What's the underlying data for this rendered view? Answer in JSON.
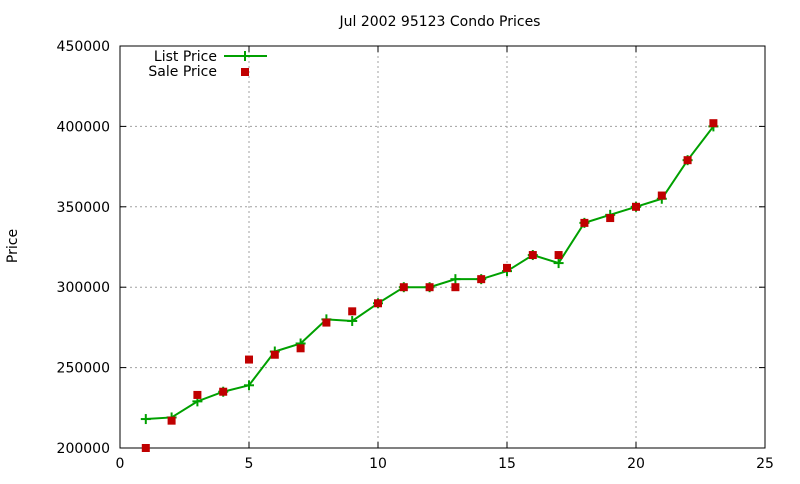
{
  "chart_data": {
    "type": "line",
    "title": "Jul 2002 95123 Condo Prices",
    "xlabel": "",
    "ylabel": "Price",
    "xlim": [
      0,
      25
    ],
    "ylim": [
      200000,
      450000
    ],
    "x_ticks": [
      0,
      5,
      10,
      15,
      20,
      25
    ],
    "y_ticks": [
      200000,
      250000,
      300000,
      350000,
      400000,
      450000
    ],
    "grid": true,
    "legend_position": "top-left",
    "series": [
      {
        "name": "List Price",
        "style": "line-with-plus-markers",
        "color": "#00a000",
        "x": [
          1,
          2,
          3,
          4,
          5,
          6,
          7,
          8,
          9,
          10,
          11,
          12,
          13,
          14,
          15,
          16,
          17,
          18,
          19,
          20,
          21,
          22,
          23
        ],
        "values": [
          218000,
          219000,
          229000,
          235000,
          239000,
          260000,
          265000,
          280000,
          279000,
          290000,
          300000,
          300000,
          305000,
          305000,
          310000,
          320000,
          315000,
          340000,
          345000,
          350000,
          355000,
          379000,
          400000
        ]
      },
      {
        "name": "Sale Price",
        "style": "square-markers",
        "color": "#c00000",
        "x": [
          1,
          2,
          3,
          4,
          5,
          6,
          7,
          8,
          9,
          10,
          11,
          12,
          13,
          14,
          15,
          16,
          17,
          18,
          19,
          20,
          21,
          22,
          23
        ],
        "values": [
          200000,
          217000,
          233000,
          235000,
          255000,
          258000,
          262000,
          278000,
          285000,
          290000,
          300000,
          300000,
          300000,
          305000,
          312000,
          320000,
          320000,
          340000,
          343000,
          350000,
          357000,
          379000,
          402000
        ]
      }
    ]
  }
}
